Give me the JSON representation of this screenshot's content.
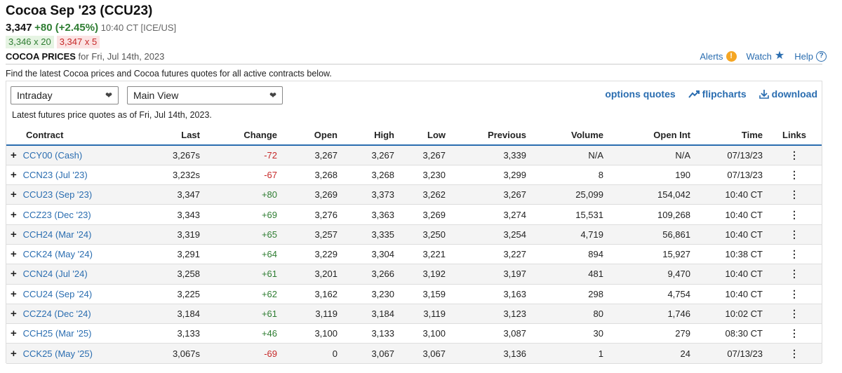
{
  "header": {
    "title": "Cocoa Sep '23 (CCU23)",
    "last": "3,347",
    "change": "+80 (+2.45%)",
    "time": "10:40 CT [ICE/US]",
    "bid": "3,346 x 20",
    "ask": "3,347 x 5",
    "section_label": "COCOA PRICES",
    "section_date": "for Fri, Jul 14th, 2023",
    "links": {
      "alerts": "Alerts",
      "watch": "Watch",
      "help": "Help"
    }
  },
  "description": "Find the latest Cocoa prices and Cocoa futures quotes for all active contracts below.",
  "controls": {
    "period": "Intraday",
    "view": "Main View",
    "options": "options quotes",
    "flipcharts": "flipcharts",
    "download": "download"
  },
  "quote_note": "Latest futures price quotes as of Fri, Jul 14th, 2023.",
  "table": {
    "columns": [
      "Contract",
      "Last",
      "Change",
      "Open",
      "High",
      "Low",
      "Previous",
      "Volume",
      "Open Int",
      "Time",
      "Links"
    ],
    "rows": [
      {
        "contract": "CCY00 (Cash)",
        "last": "3,267s",
        "change": "-72",
        "dir": "neg",
        "open": "3,267",
        "high": "3,267",
        "low": "3,267",
        "previous": "3,339",
        "volume": "N/A",
        "oi": "N/A",
        "time": "07/13/23"
      },
      {
        "contract": "CCN23 (Jul '23)",
        "last": "3,232s",
        "change": "-67",
        "dir": "neg",
        "open": "3,268",
        "high": "3,268",
        "low": "3,230",
        "previous": "3,299",
        "volume": "8",
        "oi": "190",
        "time": "07/13/23"
      },
      {
        "contract": "CCU23 (Sep '23)",
        "last": "3,347",
        "change": "+80",
        "dir": "pos",
        "open": "3,269",
        "high": "3,373",
        "low": "3,262",
        "previous": "3,267",
        "volume": "25,099",
        "oi": "154,042",
        "time": "10:40 CT"
      },
      {
        "contract": "CCZ23 (Dec '23)",
        "last": "3,343",
        "change": "+69",
        "dir": "pos",
        "open": "3,276",
        "high": "3,363",
        "low": "3,269",
        "previous": "3,274",
        "volume": "15,531",
        "oi": "109,268",
        "time": "10:40 CT"
      },
      {
        "contract": "CCH24 (Mar '24)",
        "last": "3,319",
        "change": "+65",
        "dir": "pos",
        "open": "3,257",
        "high": "3,335",
        "low": "3,250",
        "previous": "3,254",
        "volume": "4,719",
        "oi": "56,861",
        "time": "10:40 CT"
      },
      {
        "contract": "CCK24 (May '24)",
        "last": "3,291",
        "change": "+64",
        "dir": "pos",
        "open": "3,229",
        "high": "3,304",
        "low": "3,221",
        "previous": "3,227",
        "volume": "894",
        "oi": "15,927",
        "time": "10:38 CT"
      },
      {
        "contract": "CCN24 (Jul '24)",
        "last": "3,258",
        "change": "+61",
        "dir": "pos",
        "open": "3,201",
        "high": "3,266",
        "low": "3,192",
        "previous": "3,197",
        "volume": "481",
        "oi": "9,470",
        "time": "10:40 CT"
      },
      {
        "contract": "CCU24 (Sep '24)",
        "last": "3,225",
        "change": "+62",
        "dir": "pos",
        "open": "3,162",
        "high": "3,230",
        "low": "3,159",
        "previous": "3,163",
        "volume": "298",
        "oi": "4,754",
        "time": "10:40 CT"
      },
      {
        "contract": "CCZ24 (Dec '24)",
        "last": "3,184",
        "change": "+61",
        "dir": "pos",
        "open": "3,119",
        "high": "3,184",
        "low": "3,119",
        "previous": "3,123",
        "volume": "80",
        "oi": "1,746",
        "time": "10:02 CT"
      },
      {
        "contract": "CCH25 (Mar '25)",
        "last": "3,133",
        "change": "+46",
        "dir": "pos",
        "open": "3,100",
        "high": "3,133",
        "low": "3,100",
        "previous": "3,087",
        "volume": "30",
        "oi": "279",
        "time": "08:30 CT"
      },
      {
        "contract": "CCK25 (May '25)",
        "last": "3,067s",
        "change": "-69",
        "dir": "neg",
        "open": "0",
        "high": "3,067",
        "low": "3,067",
        "previous": "3,136",
        "volume": "1",
        "oi": "24",
        "time": "07/13/23"
      }
    ]
  },
  "colors": {
    "link": "#2a6db0",
    "positive": "#2e7d32",
    "negative": "#c62828",
    "alert": "#f5a623"
  }
}
